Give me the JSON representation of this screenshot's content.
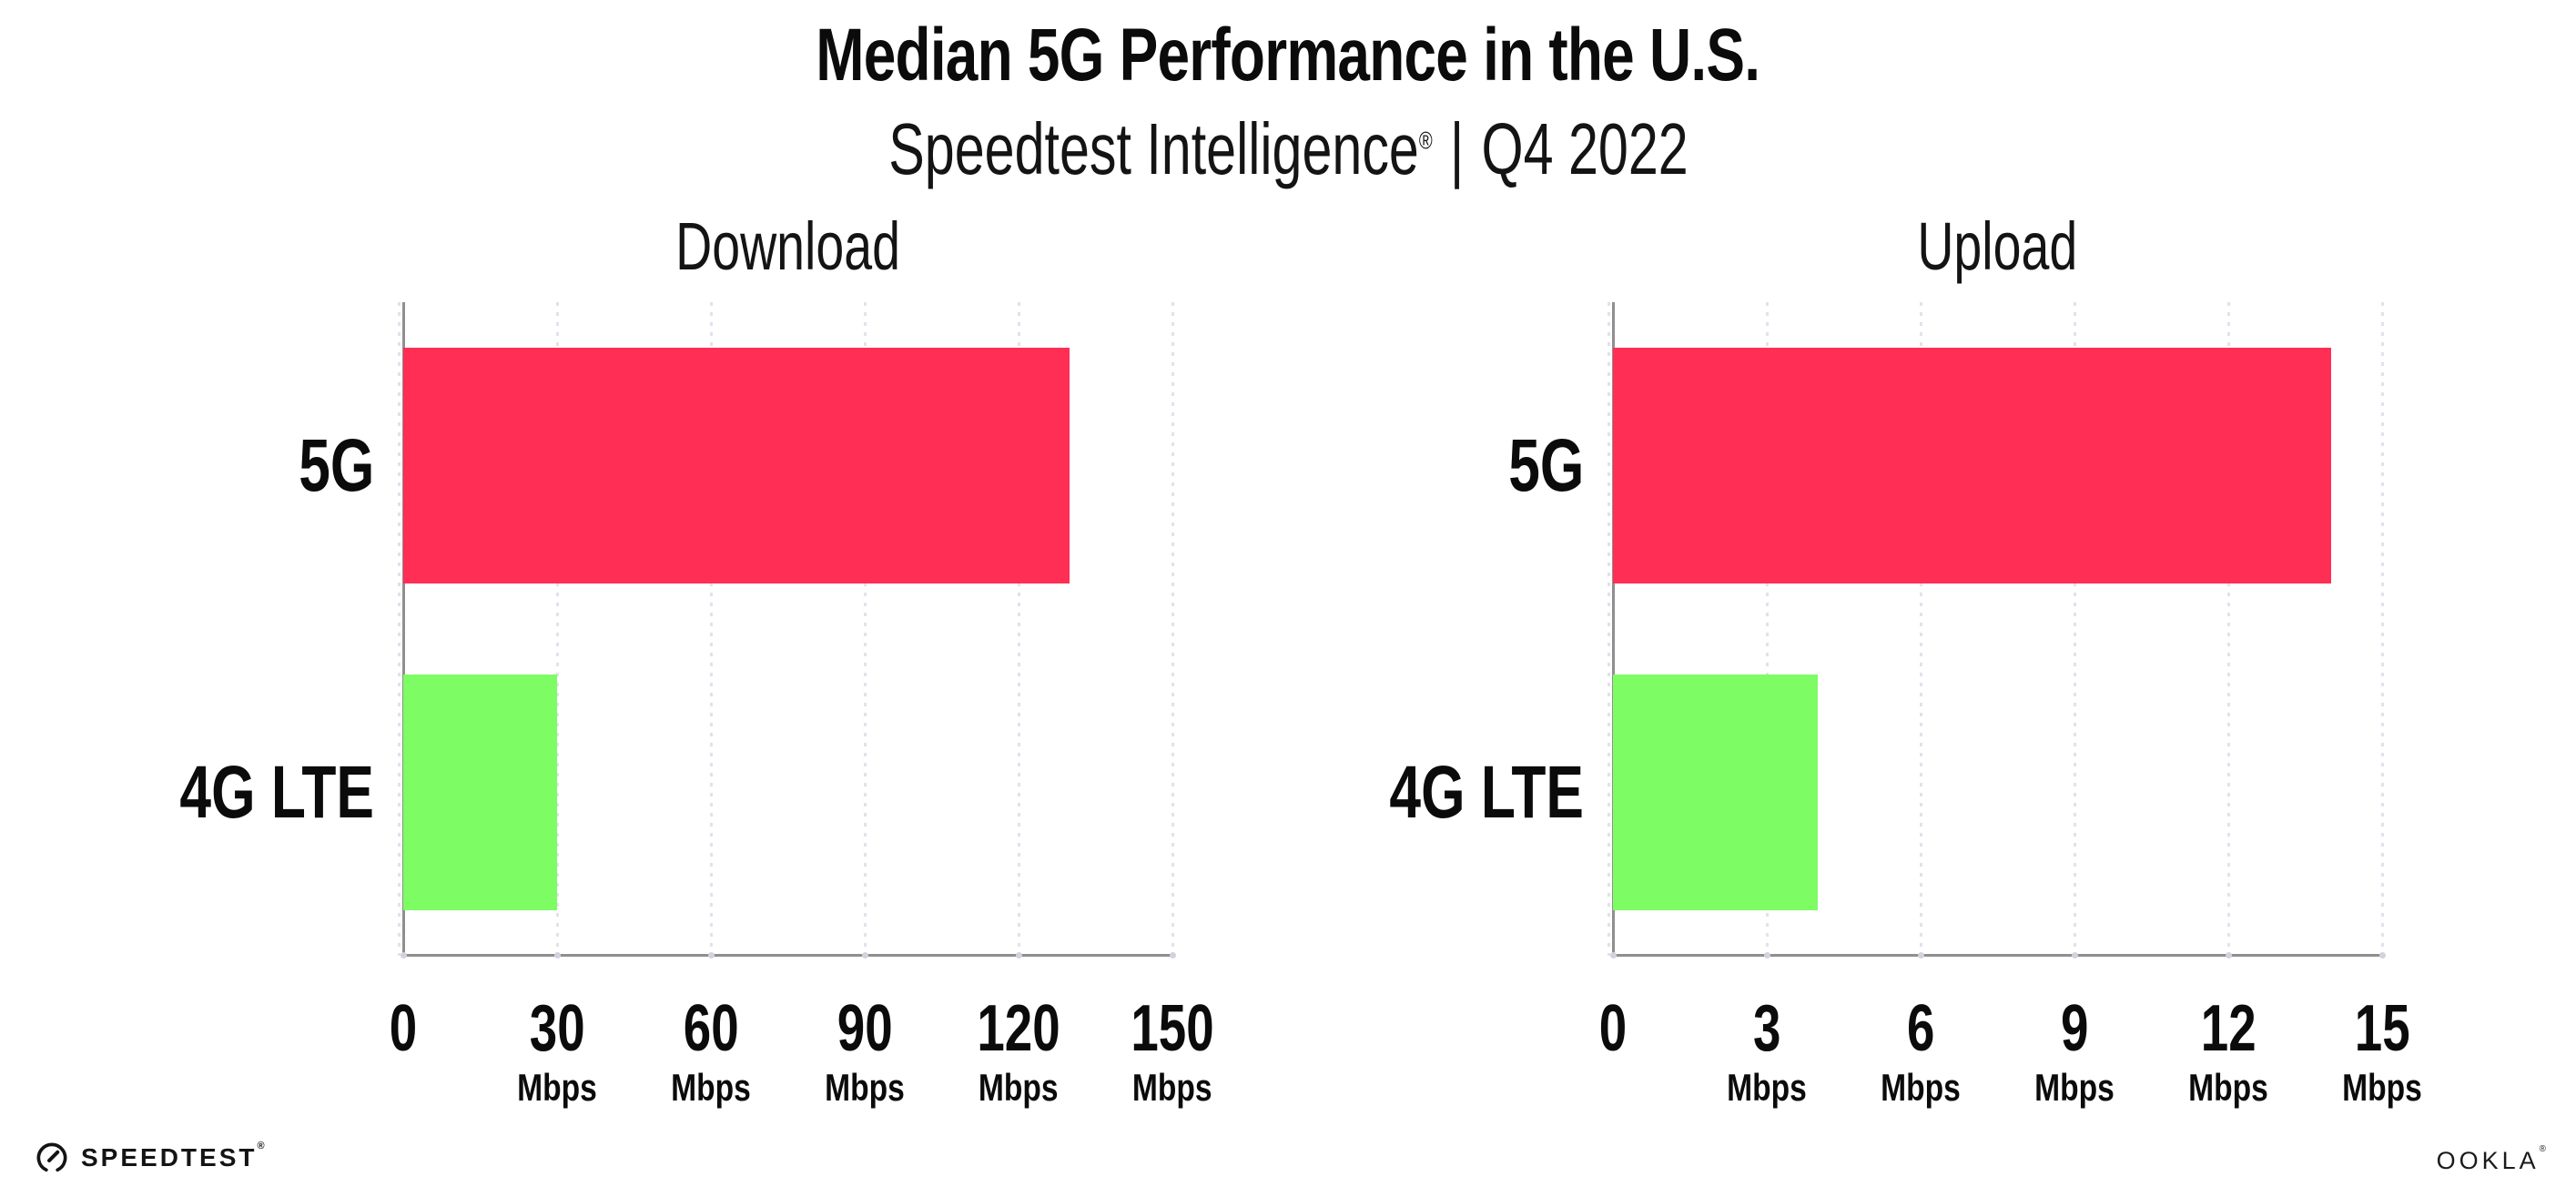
{
  "header": {
    "title": "Median 5G Performance in the U.S.",
    "subtitle_brand": "Speedtest Intelligence",
    "subtitle_reg": "®",
    "subtitle_separator": "|",
    "subtitle_period": "Q4 2022"
  },
  "footer": {
    "speedtest_label": "SPEEDTEST",
    "speedtest_reg": "®",
    "speedtest_icon": "gauge-icon",
    "ookla_label": "OOKLA",
    "ookla_reg": "®"
  },
  "colors": {
    "bar_5g": "#FF2E55",
    "bar_4g_lte": "#7DFC64",
    "axis": "#8f8f8f",
    "gridline": "#e2e2ec",
    "text": "#0b0b0b"
  },
  "chart_data": [
    {
      "type": "bar",
      "orientation": "horizontal",
      "title": "Download",
      "categories": [
        "5G",
        "4G LTE"
      ],
      "values": [
        130,
        30
      ],
      "unit": "Mbps",
      "xlim": [
        0,
        150
      ],
      "xticks": [
        0,
        30,
        60,
        90,
        120,
        150
      ],
      "grid": "dashed-vertical",
      "legend": "none",
      "bar_colors": [
        "#FF2E55",
        "#7DFC64"
      ]
    },
    {
      "type": "bar",
      "orientation": "horizontal",
      "title": "Upload",
      "categories": [
        "5G",
        "4G LTE"
      ],
      "values": [
        14,
        4
      ],
      "unit": "Mbps",
      "xlim": [
        0,
        15
      ],
      "xticks": [
        0,
        3,
        6,
        9,
        12,
        15
      ],
      "grid": "dashed-vertical",
      "legend": "none",
      "bar_colors": [
        "#FF2E55",
        "#7DFC64"
      ]
    }
  ]
}
